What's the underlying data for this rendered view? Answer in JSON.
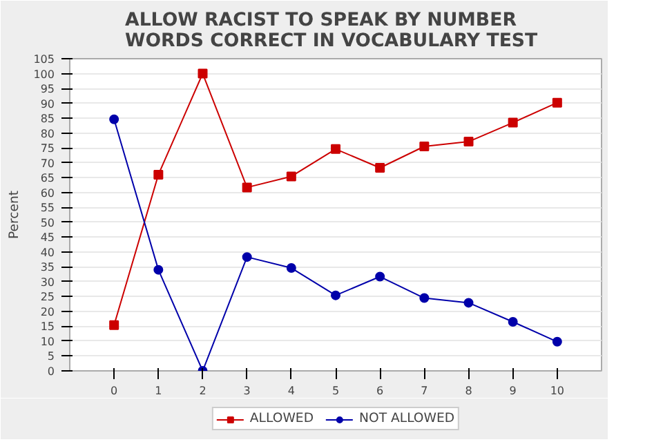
{
  "chart_data": {
    "type": "line",
    "title": "ALLOW RACIST TO SPEAK BY NUMBER WORDS CORRECT IN VOCABULARY TEST",
    "ylabel": "Percent",
    "categories": [
      "0",
      "1",
      "2",
      "3",
      "4",
      "5",
      "6",
      "7",
      "8",
      "9",
      "10"
    ],
    "series": [
      {
        "name": "ALLOWED",
        "color": "#cc0000",
        "marker": "square",
        "values": [
          15.4,
          66,
          100,
          61.7,
          65.4,
          74.6,
          68.3,
          75.5,
          77.1,
          83.5,
          90.2
        ]
      },
      {
        "name": "NOT ALLOWED",
        "color": "#0000aa",
        "marker": "circle",
        "values": [
          84.6,
          34,
          0,
          38.3,
          34.6,
          25.4,
          31.7,
          24.5,
          22.9,
          16.5,
          9.8
        ]
      }
    ],
    "ylim": [
      0,
      105
    ],
    "yticks": [
      0,
      5,
      10,
      15,
      20,
      25,
      30,
      35,
      40,
      45,
      50,
      55,
      60,
      65,
      70,
      75,
      80,
      85,
      90,
      95,
      100,
      105
    ],
    "grid": "y",
    "legend": "bottom"
  }
}
